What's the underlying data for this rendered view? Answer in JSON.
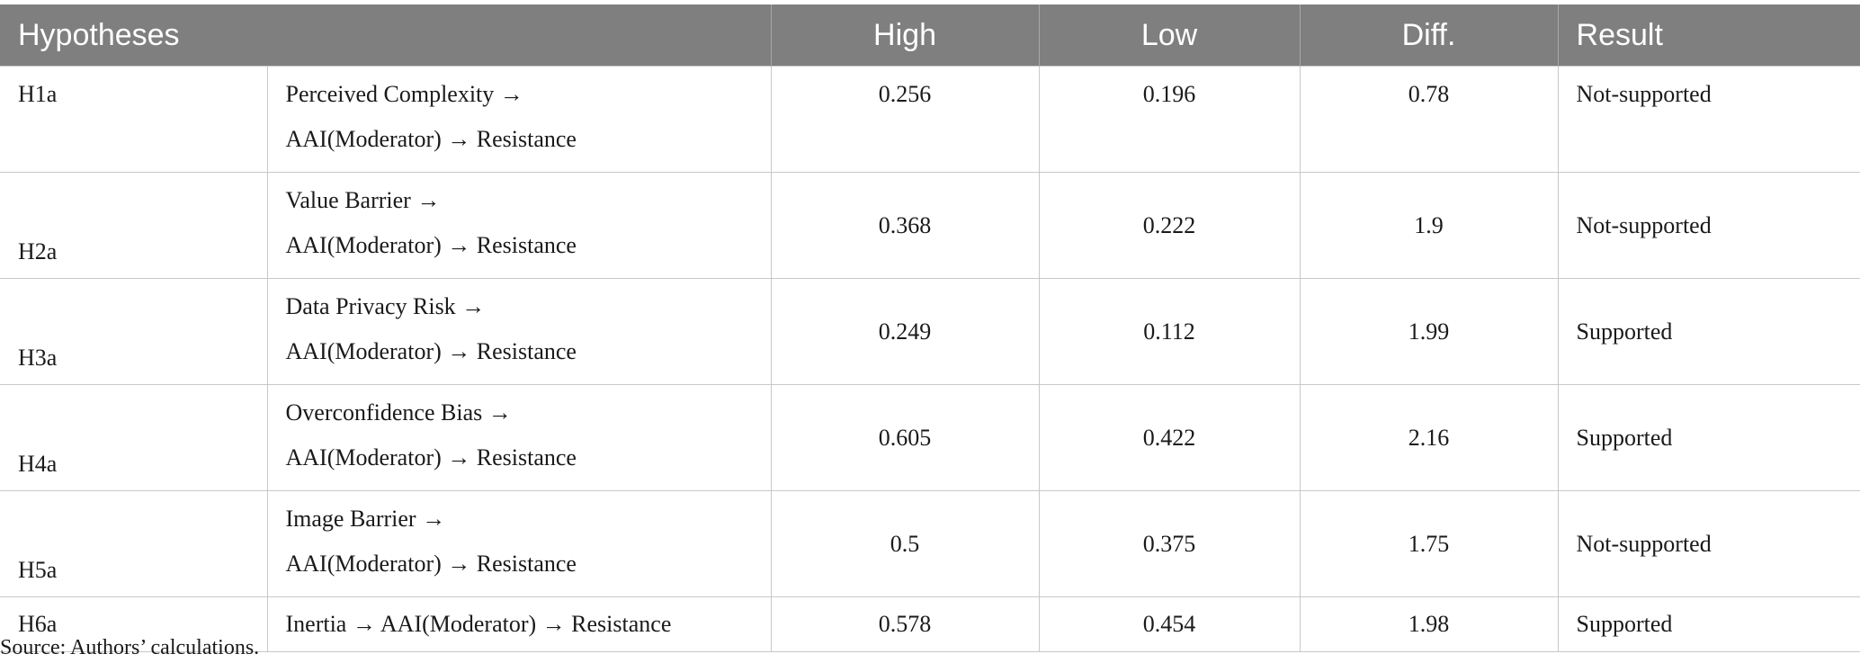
{
  "table": {
    "headers": {
      "hypotheses": "Hypotheses",
      "path": "",
      "high": "High",
      "low": "Low",
      "diff": "Diff.",
      "result": "Result"
    },
    "rows": [
      {
        "id": "H1a",
        "path_line1": "Perceived Complexity →",
        "path_line2": "AAI(Moderator) → Resistance",
        "high": "0.256",
        "low": "0.196",
        "diff": "0.78",
        "result": "Not-supported"
      },
      {
        "id": "H2a",
        "path_line1": "Value Barrier →",
        "path_line2": "AAI(Moderator) → Resistance",
        "high": "0.368",
        "low": "0.222",
        "diff": "1.9",
        "result": "Not-supported"
      },
      {
        "id": "H3a",
        "path_line1": "Data Privacy Risk →",
        "path_line2": "AAI(Moderator) → Resistance",
        "high": "0.249",
        "low": "0.112",
        "diff": "1.99",
        "result": "Supported"
      },
      {
        "id": "H4a",
        "path_line1": "Overconfidence Bias →",
        "path_line2": "AAI(Moderator) → Resistance",
        "high": "0.605",
        "low": "0.422",
        "diff": "2.16",
        "result": "Supported"
      },
      {
        "id": "H5a",
        "path_line1": "Image Barrier →",
        "path_line2": "AAI(Moderator) → Resistance",
        "high": "0.5",
        "low": "0.375",
        "diff": "1.75",
        "result": "Not-supported"
      },
      {
        "id": "H6a",
        "path_line1": "Inertia → AAI(Moderator) → Resistance",
        "high": "0.578",
        "low": "0.454",
        "diff": "1.98",
        "result": "Supported"
      }
    ]
  },
  "footnote": "Source: Authors’ calculations."
}
